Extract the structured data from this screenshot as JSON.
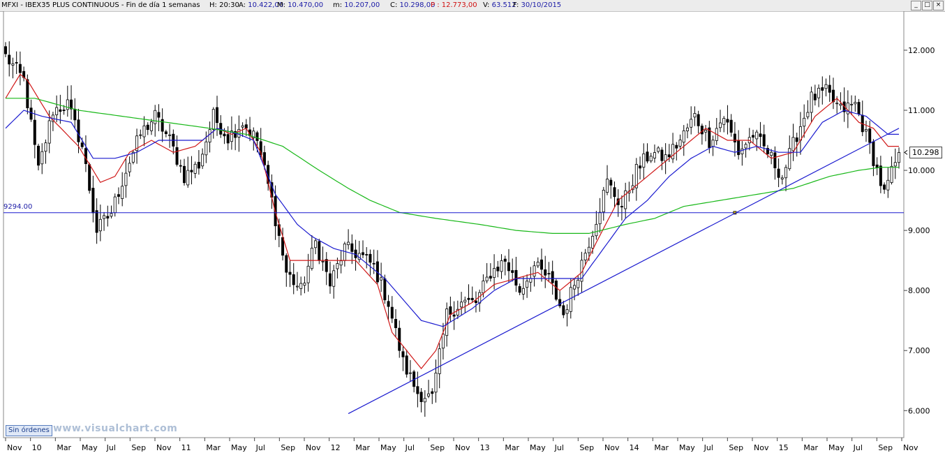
{
  "header": {
    "symbol": "MFXI - IBEX35 PLUS CONTINUOUS - Fin de día 1 semanas",
    "fields": [
      {
        "label": "H:",
        "value": "20:30",
        "color": "#000000"
      },
      {
        "label": "A:",
        "value": "10.422,00",
        "color": "#1a1aa6"
      },
      {
        "label": "M:",
        "value": "10.470,00",
        "color": "#1a1aa6"
      },
      {
        "label": "m:",
        "value": "10.207,00",
        "color": "#1a1aa6"
      },
      {
        "label": "C:",
        "value": "10.298,00",
        "color": "#1a1aa6"
      },
      {
        "label": "P :",
        "value": "12.773,00",
        "color": "#d01010"
      },
      {
        "label": "V:",
        "value": "63.512",
        "color": "#1a1aa6"
      },
      {
        "label": "F:",
        "value": "30/10/2015",
        "color": "#1a1aa6"
      }
    ]
  },
  "window_buttons": [
    "_",
    "□",
    "×"
  ],
  "badge": "Sin órdenes",
  "watermark": "www.visualchart.com",
  "last_price": "10.298",
  "reference_label": "9294.00",
  "chart_data": {
    "type": "candlestick",
    "period": "weekly",
    "y_ticks": [
      {
        "value": 6000,
        "label": "6.000"
      },
      {
        "value": 7000,
        "label": "7.000"
      },
      {
        "value": 8000,
        "label": "8.000"
      },
      {
        "value": 9000,
        "label": "9.000"
      },
      {
        "value": 10000,
        "label": "10.000"
      },
      {
        "value": 11000,
        "label": "11.000"
      },
      {
        "value": 12000,
        "label": "12.000"
      }
    ],
    "ylim": [
      5550,
      12650
    ],
    "x_ticks": [
      "Nov",
      "10",
      "Mar",
      "May",
      "Jul",
      "Sep",
      "Nov",
      "11",
      "Mar",
      "May",
      "Jul",
      "Sep",
      "Nov",
      "12",
      "Mar",
      "May",
      "Jul",
      "Sep",
      "Nov",
      "13",
      "Mar",
      "May",
      "Jul",
      "Sep",
      "Nov",
      "14",
      "Mar",
      "May",
      "Jul",
      "Sep",
      "Nov",
      "15",
      "Mar",
      "May",
      "Jul",
      "Sep",
      "Nov"
    ],
    "anchors": [
      [
        0,
        11900
      ],
      [
        5,
        11500
      ],
      [
        9,
        10000
      ],
      [
        13,
        11000
      ],
      [
        17,
        11100
      ],
      [
        21,
        10400
      ],
      [
        25,
        9000
      ],
      [
        29,
        9300
      ],
      [
        33,
        10000
      ],
      [
        37,
        10600
      ],
      [
        41,
        10900
      ],
      [
        45,
        10500
      ],
      [
        49,
        9900
      ],
      [
        53,
        10100
      ],
      [
        57,
        10900
      ],
      [
        61,
        10550
      ],
      [
        65,
        10800
      ],
      [
        69,
        10500
      ],
      [
        73,
        9500
      ],
      [
        77,
        8300
      ],
      [
        81,
        8000
      ],
      [
        85,
        8800
      ],
      [
        89,
        8100
      ],
      [
        93,
        8700
      ],
      [
        97,
        8600
      ],
      [
        101,
        8400
      ],
      [
        105,
        7800
      ],
      [
        109,
        6800
      ],
      [
        113,
        6300
      ],
      [
        117,
        6200
      ],
      [
        121,
        7600
      ],
      [
        125,
        7800
      ],
      [
        129,
        7800
      ],
      [
        133,
        8300
      ],
      [
        137,
        8500
      ],
      [
        141,
        8000
      ],
      [
        145,
        8400
      ],
      [
        149,
        8200
      ],
      [
        153,
        7600
      ],
      [
        157,
        8300
      ],
      [
        161,
        9000
      ],
      [
        165,
        9800
      ],
      [
        169,
        9400
      ],
      [
        173,
        10000
      ],
      [
        177,
        10300
      ],
      [
        181,
        10200
      ],
      [
        185,
        10500
      ],
      [
        189,
        10900
      ],
      [
        193,
        10500
      ],
      [
        197,
        10900
      ],
      [
        201,
        10300
      ],
      [
        205,
        10600
      ],
      [
        209,
        10300
      ],
      [
        213,
        9900
      ],
      [
        217,
        10600
      ],
      [
        221,
        11200
      ],
      [
        225,
        11300
      ],
      [
        229,
        11000
      ],
      [
        233,
        11100
      ],
      [
        237,
        10400
      ],
      [
        241,
        9600
      ],
      [
        245,
        10300
      ]
    ],
    "series": [
      {
        "name": "",
        "type": "line",
        "color": "#d01818",
        "values": [
          [
            0,
            11200
          ],
          [
            4,
            11600
          ],
          [
            6,
            11500
          ],
          [
            12,
            10900
          ],
          [
            20,
            10400
          ],
          [
            26,
            9800
          ],
          [
            30,
            9900
          ],
          [
            34,
            10300
          ],
          [
            40,
            10500
          ],
          [
            46,
            10300
          ],
          [
            52,
            10400
          ],
          [
            58,
            10700
          ],
          [
            62,
            10600
          ],
          [
            66,
            10700
          ],
          [
            70,
            10300
          ],
          [
            74,
            9300
          ],
          [
            78,
            8500
          ],
          [
            82,
            8500
          ],
          [
            86,
            8500
          ],
          [
            90,
            8500
          ],
          [
            96,
            8500
          ],
          [
            102,
            8100
          ],
          [
            106,
            7300
          ],
          [
            114,
            6700
          ],
          [
            118,
            7000
          ],
          [
            122,
            7600
          ],
          [
            128,
            7800
          ],
          [
            134,
            8100
          ],
          [
            140,
            8200
          ],
          [
            146,
            8300
          ],
          [
            152,
            8000
          ],
          [
            158,
            8300
          ],
          [
            162,
            8800
          ],
          [
            168,
            9500
          ],
          [
            174,
            9800
          ],
          [
            180,
            10100
          ],
          [
            186,
            10400
          ],
          [
            192,
            10700
          ],
          [
            198,
            10500
          ],
          [
            204,
            10500
          ],
          [
            210,
            10200
          ],
          [
            216,
            10300
          ],
          [
            222,
            10900
          ],
          [
            228,
            11200
          ],
          [
            234,
            10800
          ],
          [
            238,
            10700
          ],
          [
            242,
            10400
          ],
          [
            245,
            10400
          ]
        ]
      },
      {
        "name": "",
        "type": "line",
        "color": "#1a1acf",
        "values": [
          [
            0,
            10700
          ],
          [
            5,
            11000
          ],
          [
            10,
            10900
          ],
          [
            18,
            10800
          ],
          [
            24,
            10200
          ],
          [
            30,
            10200
          ],
          [
            36,
            10300
          ],
          [
            42,
            10500
          ],
          [
            48,
            10500
          ],
          [
            54,
            10500
          ],
          [
            58,
            10700
          ],
          [
            64,
            10600
          ],
          [
            68,
            10500
          ],
          [
            74,
            9600
          ],
          [
            80,
            9100
          ],
          [
            84,
            8900
          ],
          [
            90,
            8700
          ],
          [
            96,
            8600
          ],
          [
            104,
            8200
          ],
          [
            114,
            7500
          ],
          [
            120,
            7400
          ],
          [
            128,
            7700
          ],
          [
            134,
            8000
          ],
          [
            140,
            8200
          ],
          [
            146,
            8200
          ],
          [
            152,
            8200
          ],
          [
            158,
            8200
          ],
          [
            164,
            8700
          ],
          [
            170,
            9200
          ],
          [
            176,
            9500
          ],
          [
            182,
            9900
          ],
          [
            188,
            10200
          ],
          [
            194,
            10400
          ],
          [
            200,
            10300
          ],
          [
            206,
            10400
          ],
          [
            212,
            10300
          ],
          [
            218,
            10300
          ],
          [
            224,
            10800
          ],
          [
            230,
            11000
          ],
          [
            236,
            10900
          ],
          [
            242,
            10600
          ],
          [
            245,
            10600
          ]
        ]
      },
      {
        "name": "",
        "type": "line",
        "color": "#18b818",
        "values": [
          [
            0,
            11200
          ],
          [
            8,
            11200
          ],
          [
            20,
            11000
          ],
          [
            32,
            10900
          ],
          [
            44,
            10800
          ],
          [
            56,
            10700
          ],
          [
            66,
            10600
          ],
          [
            76,
            10400
          ],
          [
            86,
            10000
          ],
          [
            94,
            9700
          ],
          [
            100,
            9500
          ],
          [
            108,
            9300
          ],
          [
            118,
            9200
          ],
          [
            130,
            9100
          ],
          [
            140,
            9000
          ],
          [
            150,
            8950
          ],
          [
            160,
            8950
          ],
          [
            170,
            9100
          ],
          [
            178,
            9200
          ],
          [
            186,
            9400
          ],
          [
            196,
            9500
          ],
          [
            206,
            9600
          ],
          [
            216,
            9700
          ],
          [
            226,
            9900
          ],
          [
            234,
            10000
          ],
          [
            240,
            10050
          ],
          [
            245,
            10050
          ]
        ]
      }
    ],
    "trendline": {
      "color": "#1a1acf",
      "from": [
        94,
        5950
      ],
      "to": [
        245,
        10700
      ]
    },
    "reference_line": {
      "value": 9294,
      "color": "#1a1acf"
    },
    "last_close": 10298
  },
  "colors": {
    "candle": "#000000",
    "grid": "#cfcfcf",
    "background": "#ffffff"
  }
}
